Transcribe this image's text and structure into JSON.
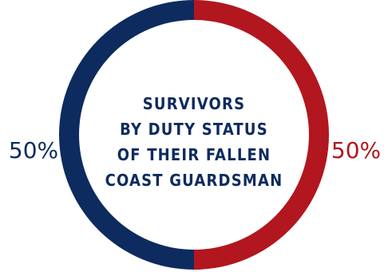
{
  "chart_data": {
    "type": "pie",
    "style": "donut",
    "title_lines": [
      "SURVIVORS",
      "BY DUTY STATUS",
      "OF THEIR FALLEN",
      "COAST GUARDSMAN"
    ],
    "slices": [
      {
        "label": "50%",
        "value": 50,
        "color": "#0d2b5e"
      },
      {
        "label": "50%",
        "value": 50,
        "color": "#b2161e"
      }
    ],
    "legend": "none"
  },
  "colors": {
    "title": "#0d2b5e",
    "background": "#ffffff"
  }
}
